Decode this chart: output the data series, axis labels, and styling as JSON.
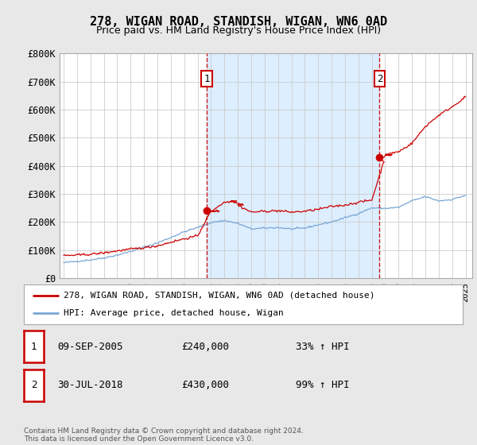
{
  "title": "278, WIGAN ROAD, STANDISH, WIGAN, WN6 0AD",
  "subtitle": "Price paid vs. HM Land Registry's House Price Index (HPI)",
  "legend_line1": "278, WIGAN ROAD, STANDISH, WIGAN, WN6 0AD (detached house)",
  "legend_line2": "HPI: Average price, detached house, Wigan",
  "footer": "Contains HM Land Registry data © Crown copyright and database right 2024.\nThis data is licensed under the Open Government Licence v3.0.",
  "table_rows": [
    {
      "num": "1",
      "date": "09-SEP-2005",
      "price": "£240,000",
      "change": "33% ↑ HPI"
    },
    {
      "num": "2",
      "date": "30-JUL-2018",
      "price": "£430,000",
      "change": "99% ↑ HPI"
    }
  ],
  "hpi_color": "#7aa7d4",
  "price_color": "#cc0000",
  "shade_color": "#ddeeff",
  "background_color": "#e8e8e8",
  "plot_bg_color": "#ffffff",
  "ylim": [
    0,
    800000
  ],
  "yticks": [
    0,
    100000,
    200000,
    300000,
    400000,
    500000,
    600000,
    700000,
    800000
  ],
  "ytick_labels": [
    "£0",
    "£100K",
    "£200K",
    "£300K",
    "£400K",
    "£500K",
    "£600K",
    "£700K",
    "£800K"
  ],
  "sale1_x": 2005.69,
  "sale1_y": 240000,
  "sale2_x": 2018.58,
  "sale2_y": 430000,
  "xlim_left": 1994.7,
  "xlim_right": 2025.5
}
